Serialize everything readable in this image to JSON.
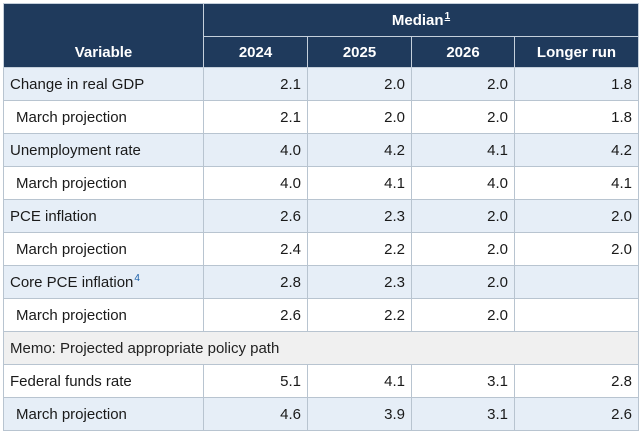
{
  "header": {
    "variable": "Variable",
    "median": "Median",
    "median_footnote": "1",
    "columns": [
      "2024",
      "2025",
      "2026",
      "Longer run"
    ]
  },
  "rows": [
    {
      "label": "Change in real GDP",
      "footnote": "",
      "values": [
        "2.1",
        "2.0",
        "2.0",
        "1.8"
      ]
    },
    {
      "label": "March projection",
      "footnote": "",
      "values": [
        "2.1",
        "2.0",
        "2.0",
        "1.8"
      ]
    },
    {
      "label": "Unemployment rate",
      "footnote": "",
      "values": [
        "4.0",
        "4.2",
        "4.1",
        "4.2"
      ]
    },
    {
      "label": "March projection",
      "footnote": "",
      "values": [
        "4.0",
        "4.1",
        "4.0",
        "4.1"
      ]
    },
    {
      "label": "PCE inflation",
      "footnote": "",
      "values": [
        "2.6",
        "2.3",
        "2.0",
        "2.0"
      ]
    },
    {
      "label": "March projection",
      "footnote": "",
      "values": [
        "2.4",
        "2.2",
        "2.0",
        "2.0"
      ]
    },
    {
      "label": "Core PCE inflation",
      "footnote": "4",
      "values": [
        "2.8",
        "2.3",
        "2.0",
        ""
      ]
    },
    {
      "label": "March projection",
      "footnote": "",
      "values": [
        "2.6",
        "2.2",
        "2.0",
        ""
      ]
    }
  ],
  "memo": "Memo: Projected appropriate policy path",
  "memo_rows": [
    {
      "label": "Federal funds rate",
      "values": [
        "5.1",
        "4.1",
        "3.1",
        "2.8"
      ]
    },
    {
      "label": "March projection",
      "values": [
        "4.6",
        "3.9",
        "3.1",
        "2.6"
      ]
    }
  ]
}
